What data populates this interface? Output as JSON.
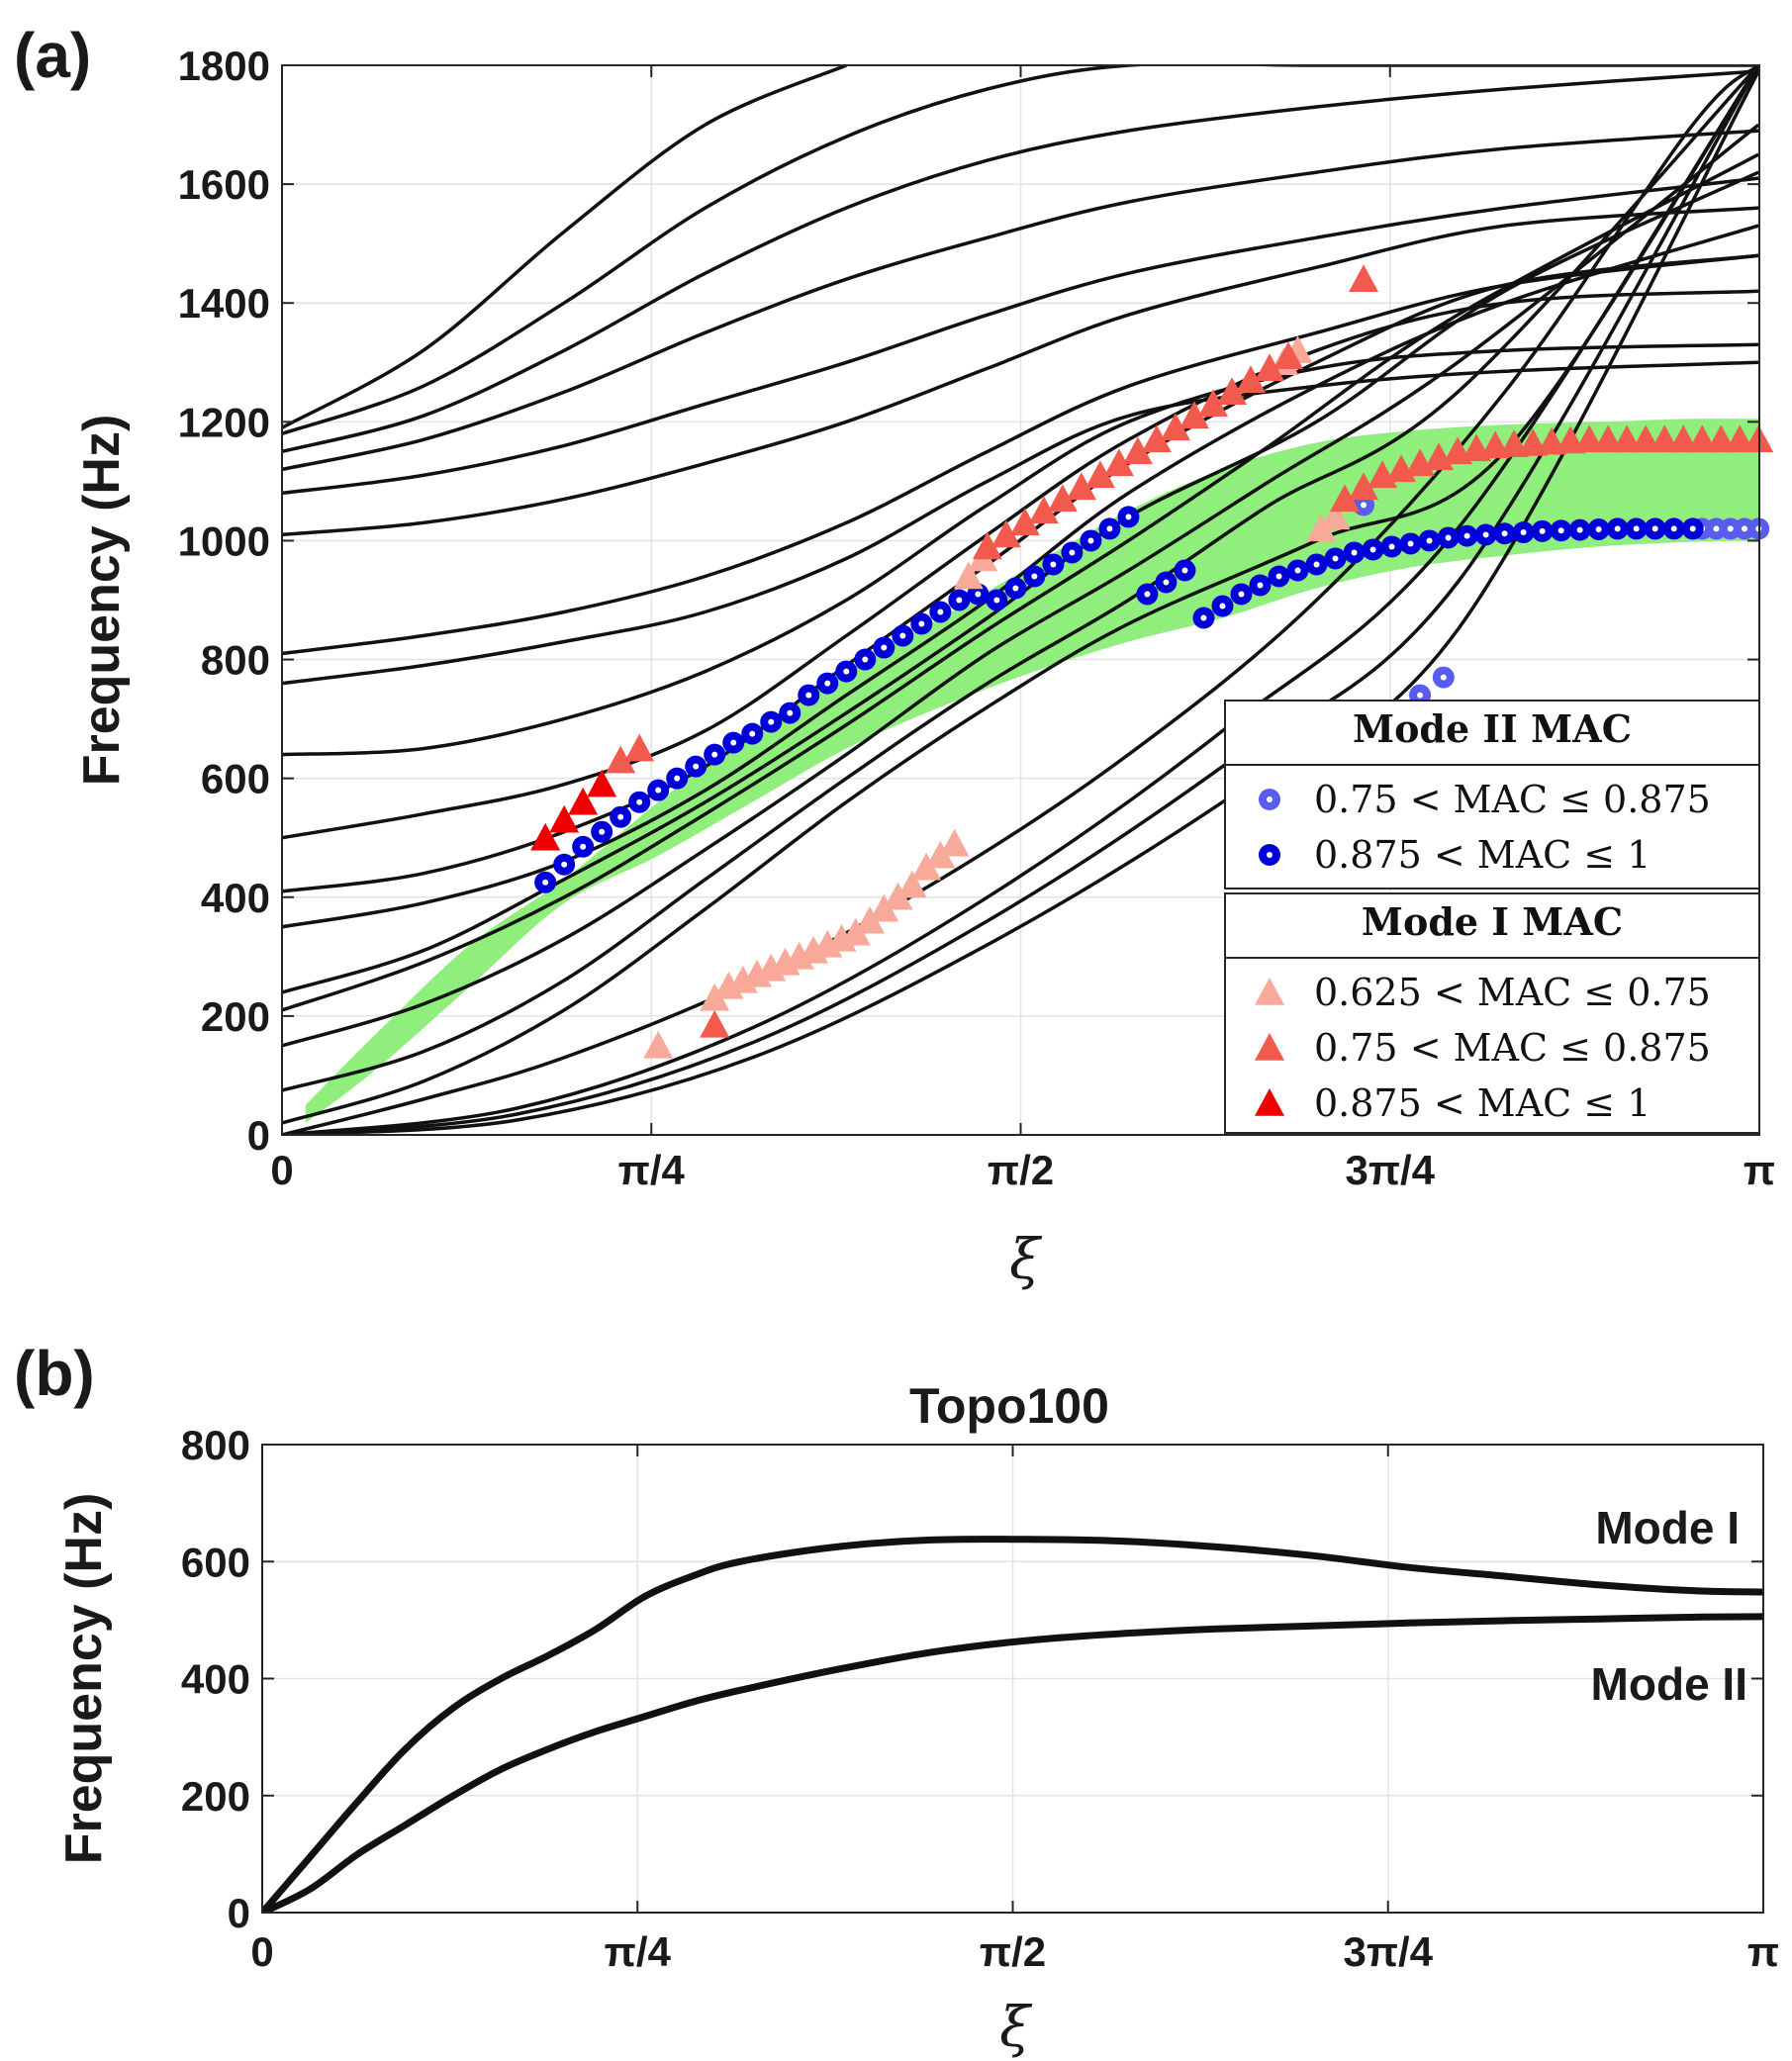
{
  "chart_data": [
    {
      "panel_label": "(a)",
      "type": "line",
      "xlabel": "ξ",
      "ylabel": "Frequency (Hz)",
      "xlim": [
        0,
        3.14159
      ],
      "ylim": [
        0,
        1800
      ],
      "xticks": [
        0,
        0.7854,
        1.5708,
        2.3562,
        3.14159
      ],
      "xtick_labels": [
        "0",
        "π/4",
        "π/2",
        "3π/4",
        "π"
      ],
      "yticks": [
        0,
        200,
        400,
        600,
        800,
        1000,
        1200,
        1400,
        1600,
        1800
      ],
      "ytick_labels": [
        "0",
        "200",
        "400",
        "600",
        "800",
        "1000",
        "1200",
        "1400",
        "1600",
        "1800"
      ],
      "grid": true,
      "band_color": "#90ee7c",
      "band": {
        "x": [
          0.05,
          0.2,
          0.4,
          0.6,
          0.8,
          1.0,
          1.2,
          1.4,
          1.6,
          1.8,
          2.0,
          2.2,
          2.4,
          2.6,
          2.8,
          3.0,
          3.14
        ],
        "lower": [
          20,
          110,
          250,
          390,
          470,
          560,
          650,
          720,
          780,
          830,
          870,
          920,
          955,
          975,
          990,
          998,
          1000
        ],
        "upper": [
          50,
          170,
          320,
          430,
          560,
          680,
          780,
          870,
          960,
          1050,
          1120,
          1165,
          1185,
          1195,
          1200,
          1205,
          1205
        ]
      },
      "curves": [
        {
          "x": [
            0,
            0.5,
            1.0,
            1.5,
            2.0,
            2.5,
            3.14
          ],
          "y": [
            0,
            25,
            130,
            320,
            560,
            850,
            1790
          ]
        },
        {
          "x": [
            0,
            0.5,
            1.0,
            1.5,
            2.0,
            2.5,
            3.14
          ],
          "y": [
            0,
            35,
            155,
            360,
            620,
            930,
            1800
          ]
        },
        {
          "x": [
            0,
            0.5,
            1.0,
            1.5,
            2.0,
            2.5,
            3.14
          ],
          "y": [
            0,
            45,
            180,
            400,
            680,
            1020,
            1800
          ]
        },
        {
          "x": [
            0,
            0.3,
            0.6,
            1.0,
            1.4,
            1.8,
            2.2,
            2.6,
            3.0,
            3.14
          ],
          "y": [
            0,
            60,
            130,
            260,
            430,
            640,
            900,
            1250,
            1700,
            1800
          ]
        },
        {
          "x": [
            0,
            0.3,
            0.6,
            0.9,
            1.2,
            1.5,
            1.8,
            2.2,
            2.6,
            3.14
          ],
          "y": [
            20,
            90,
            210,
            380,
            560,
            720,
            860,
            1000,
            1150,
            1800
          ]
        },
        {
          "x": [
            0,
            0.3,
            0.6,
            0.9,
            1.2,
            1.5,
            1.8,
            2.1,
            2.5,
            3.14
          ],
          "y": [
            75,
            140,
            260,
            430,
            600,
            760,
            900,
            1060,
            1250,
            1800
          ]
        },
        {
          "x": [
            0,
            0.3,
            0.6,
            0.9,
            1.2,
            1.5,
            1.8,
            2.1,
            2.5,
            3.14
          ],
          "y": [
            150,
            220,
            330,
            480,
            640,
            810,
            950,
            1100,
            1300,
            1700
          ]
        },
        {
          "x": [
            0,
            0.3,
            0.6,
            0.9,
            1.2,
            1.5,
            1.8,
            2.1,
            2.5,
            3.14
          ],
          "y": [
            210,
            290,
            400,
            540,
            690,
            850,
            1000,
            1160,
            1380,
            1650
          ]
        },
        {
          "x": [
            0,
            0.3,
            0.6,
            0.9,
            1.2,
            1.5,
            1.8,
            2.2,
            2.6,
            3.14
          ],
          "y": [
            240,
            310,
            430,
            560,
            710,
            870,
            1040,
            1200,
            1420,
            1620
          ]
        },
        {
          "x": [
            0,
            0.3,
            0.6,
            0.9,
            1.2,
            1.5,
            1.8,
            2.2,
            2.6,
            3.14
          ],
          "y": [
            350,
            390,
            460,
            580,
            740,
            900,
            1080,
            1260,
            1400,
            1530
          ]
        },
        {
          "x": [
            0,
            0.3,
            0.6,
            0.9,
            1.2,
            1.5,
            1.8,
            2.2,
            2.6,
            3.14
          ],
          "y": [
            410,
            440,
            510,
            620,
            790,
            960,
            1130,
            1300,
            1430,
            1480
          ]
        },
        {
          "x": [
            0,
            0.3,
            0.6,
            0.9,
            1.2,
            1.5,
            1.8,
            2.2,
            2.6,
            3.14
          ],
          "y": [
            500,
            540,
            590,
            680,
            840,
            1010,
            1170,
            1320,
            1400,
            1420
          ]
        },
        {
          "x": [
            0,
            0.3,
            0.6,
            0.9,
            1.2,
            1.5,
            1.8,
            2.2,
            2.6,
            3.14
          ],
          "y": [
            640,
            650,
            700,
            780,
            900,
            1060,
            1200,
            1290,
            1320,
            1330
          ]
        },
        {
          "x": [
            0,
            0.3,
            0.6,
            0.9,
            1.2,
            1.5,
            1.8,
            2.2,
            2.6,
            3.14
          ],
          "y": [
            760,
            790,
            830,
            880,
            970,
            1100,
            1210,
            1260,
            1285,
            1300
          ]
        },
        {
          "x": [
            0,
            0.3,
            0.6,
            0.9,
            1.2,
            1.5,
            1.8,
            2.2,
            2.6,
            3.14
          ],
          "y": [
            810,
            840,
            880,
            940,
            1030,
            1150,
            1260,
            1350,
            1430,
            1480
          ]
        },
        {
          "x": [
            0,
            0.3,
            0.6,
            0.9,
            1.2,
            1.5,
            1.8,
            2.2,
            2.6,
            3.14
          ],
          "y": [
            1010,
            1030,
            1070,
            1130,
            1200,
            1290,
            1380,
            1460,
            1530,
            1560
          ]
        },
        {
          "x": [
            0,
            0.3,
            0.6,
            0.9,
            1.2,
            1.5,
            1.8,
            2.2,
            2.6,
            3.14
          ],
          "y": [
            1080,
            1110,
            1160,
            1230,
            1300,
            1380,
            1450,
            1510,
            1560,
            1610
          ]
        },
        {
          "x": [
            0,
            0.3,
            0.6,
            0.9,
            1.2,
            1.5,
            1.8,
            2.2,
            2.6,
            3.14
          ],
          "y": [
            1120,
            1170,
            1250,
            1350,
            1440,
            1510,
            1570,
            1620,
            1660,
            1690
          ]
        },
        {
          "x": [
            0,
            0.3,
            0.6,
            0.9,
            1.2,
            1.5,
            1.8,
            2.2,
            2.6,
            3.14
          ],
          "y": [
            1150,
            1210,
            1320,
            1450,
            1560,
            1640,
            1690,
            1730,
            1760,
            1790
          ]
        },
        {
          "x": [
            0,
            0.3,
            0.6,
            0.9,
            1.2,
            1.5,
            1.8,
            2.2,
            2.6,
            3.14
          ],
          "y": [
            1180,
            1260,
            1400,
            1560,
            1680,
            1760,
            1800,
            1800,
            1800,
            1800
          ]
        },
        {
          "x": [
            0,
            0.3,
            0.6,
            0.9,
            1.2
          ],
          "y": [
            1190,
            1320,
            1520,
            1700,
            1800
          ]
        }
      ],
      "series": [
        {
          "name": "0.75 < MAC ≤ 0.875",
          "group": "Mode II MAC",
          "marker": "circle",
          "color": "#5a5cf0",
          "x": [
            2.3,
            2.34,
            2.38,
            2.42,
            2.47,
            3.02,
            3.05,
            3.08,
            3.11,
            3.14
          ],
          "y": [
            1060,
            690,
            710,
            740,
            770,
            1020,
            1020,
            1020,
            1020,
            1020
          ]
        },
        {
          "name": "0.875 < MAC ≤ 1",
          "group": "Mode II MAC",
          "marker": "circle",
          "color": "#0000d8",
          "x": [
            0.56,
            0.6,
            0.64,
            0.68,
            0.72,
            0.76,
            0.8,
            0.84,
            0.88,
            0.92,
            0.96,
            1.0,
            1.04,
            1.08,
            1.12,
            1.16,
            1.2,
            1.24,
            1.28,
            1.32,
            1.36,
            1.4,
            1.44,
            1.48,
            1.52,
            1.56,
            1.6,
            1.64,
            1.68,
            1.72,
            1.76,
            1.8,
            1.84,
            1.88,
            1.92,
            1.96,
            2.0,
            2.04,
            2.08,
            2.12,
            2.16,
            2.2,
            2.24,
            2.28,
            2.32,
            2.36,
            2.4,
            2.44,
            2.48,
            2.52,
            2.56,
            2.6,
            2.64,
            2.68,
            2.72,
            2.76,
            2.8,
            2.84,
            2.88,
            2.92,
            2.96,
            3.0
          ],
          "y": [
            425,
            455,
            485,
            510,
            535,
            560,
            580,
            600,
            620,
            640,
            660,
            675,
            695,
            710,
            740,
            760,
            780,
            800,
            820,
            840,
            860,
            880,
            900,
            910,
            900,
            920,
            940,
            960,
            980,
            1000,
            1020,
            1040,
            910,
            930,
            950,
            870,
            890,
            910,
            925,
            940,
            950,
            960,
            970,
            980,
            985,
            990,
            995,
            1000,
            1005,
            1008,
            1010,
            1012,
            1014,
            1016,
            1017,
            1018,
            1019,
            1020,
            1020,
            1020,
            1020,
            1020
          ]
        },
        {
          "name": "0.625 < MAC ≤ 0.75",
          "group": "Mode I MAC",
          "marker": "triangle",
          "color": "#f9a99a",
          "x": [
            0.8,
            0.92,
            0.95,
            0.98,
            1.01,
            1.04,
            1.07,
            1.1,
            1.13,
            1.16,
            1.19,
            1.22,
            1.25,
            1.28,
            1.31,
            1.34,
            1.37,
            1.4,
            1.43,
            1.46,
            1.49,
            2.13,
            2.16,
            2.21,
            2.24
          ],
          "y": [
            150,
            230,
            250,
            260,
            270,
            280,
            290,
            300,
            310,
            320,
            330,
            340,
            360,
            380,
            400,
            420,
            450,
            470,
            490,
            940,
            970,
            1300,
            1320,
            1020,
            1040
          ]
        },
        {
          "name": "0.75 < MAC ≤ 0.875",
          "group": "Mode I MAC",
          "marker": "triangle",
          "color": "#f25a4e",
          "x": [
            0.92,
            0.72,
            0.76,
            1.5,
            1.54,
            1.58,
            1.62,
            1.66,
            1.7,
            1.74,
            1.78,
            1.82,
            1.86,
            1.9,
            1.94,
            1.98,
            2.02,
            2.06,
            2.1,
            2.14,
            2.3,
            2.26,
            2.3,
            2.34,
            2.38,
            2.42,
            2.46,
            2.5,
            2.54,
            2.58,
            2.62,
            2.66,
            2.7,
            2.74,
            2.78,
            2.82,
            2.86,
            2.9,
            2.94,
            2.98,
            3.02,
            3.06,
            3.1,
            3.14
          ],
          "y": [
            185,
            630,
            650,
            990,
            1010,
            1030,
            1050,
            1070,
            1090,
            1110,
            1130,
            1150,
            1170,
            1190,
            1210,
            1230,
            1250,
            1270,
            1290,
            1310,
            1440,
            1070,
            1090,
            1110,
            1120,
            1130,
            1140,
            1150,
            1155,
            1160,
            1162,
            1164,
            1166,
            1168,
            1170,
            1170,
            1170,
            1170,
            1170,
            1170,
            1170,
            1170,
            1170,
            1170
          ]
        },
        {
          "name": "0.875 < MAC ≤ 1",
          "group": "Mode I MAC",
          "marker": "triangle",
          "color": "#ee0000",
          "x": [
            0.56,
            0.6,
            0.64,
            0.68
          ],
          "y": [
            500,
            530,
            560,
            590
          ]
        }
      ],
      "legend_groups": [
        {
          "title": "Mode II MAC",
          "entries": [
            "0.75 < MAC ≤ 0.875",
            "0.875 < MAC ≤ 1"
          ]
        },
        {
          "title": "Mode I MAC",
          "entries": [
            "0.625 < MAC ≤ 0.75",
            "0.75 < MAC ≤ 0.875",
            "0.875 < MAC ≤ 1"
          ]
        }
      ],
      "legend_placement": "lower-right"
    },
    {
      "panel_label": "(b)",
      "type": "line",
      "title": "Topo100",
      "xlabel": "ξ",
      "ylabel": "Frequency (Hz)",
      "xlim": [
        0,
        3.14159
      ],
      "ylim": [
        0,
        800
      ],
      "xticks": [
        0,
        0.7854,
        1.5708,
        2.3562,
        3.14159
      ],
      "xtick_labels": [
        "0",
        "π/4",
        "π/2",
        "3π/4",
        "π"
      ],
      "yticks": [
        0,
        200,
        400,
        600,
        800
      ],
      "ytick_labels": [
        "0",
        "200",
        "400",
        "600",
        "800"
      ],
      "grid": true,
      "series": [
        {
          "name": "Mode I",
          "x": [
            0,
            0.1,
            0.2,
            0.3,
            0.4,
            0.5,
            0.6,
            0.7,
            0.8,
            0.9,
            1.0,
            1.2,
            1.4,
            1.6,
            1.8,
            2.0,
            2.2,
            2.4,
            2.6,
            2.8,
            3.0,
            3.14
          ],
          "y": [
            0,
            95,
            190,
            280,
            350,
            400,
            440,
            485,
            540,
            575,
            600,
            625,
            637,
            638,
            635,
            625,
            610,
            590,
            575,
            560,
            550,
            548
          ]
        },
        {
          "name": "Mode II",
          "x": [
            0,
            0.1,
            0.2,
            0.3,
            0.4,
            0.5,
            0.6,
            0.7,
            0.8,
            0.9,
            1.0,
            1.2,
            1.4,
            1.6,
            1.8,
            2.0,
            2.2,
            2.4,
            2.6,
            2.8,
            3.0,
            3.14
          ],
          "y": [
            0,
            40,
            100,
            150,
            200,
            245,
            280,
            310,
            335,
            360,
            380,
            415,
            445,
            465,
            477,
            485,
            490,
            495,
            499,
            502,
            505,
            506
          ]
        }
      ],
      "series_labels": [
        "Mode I",
        "Mode II"
      ]
    }
  ]
}
